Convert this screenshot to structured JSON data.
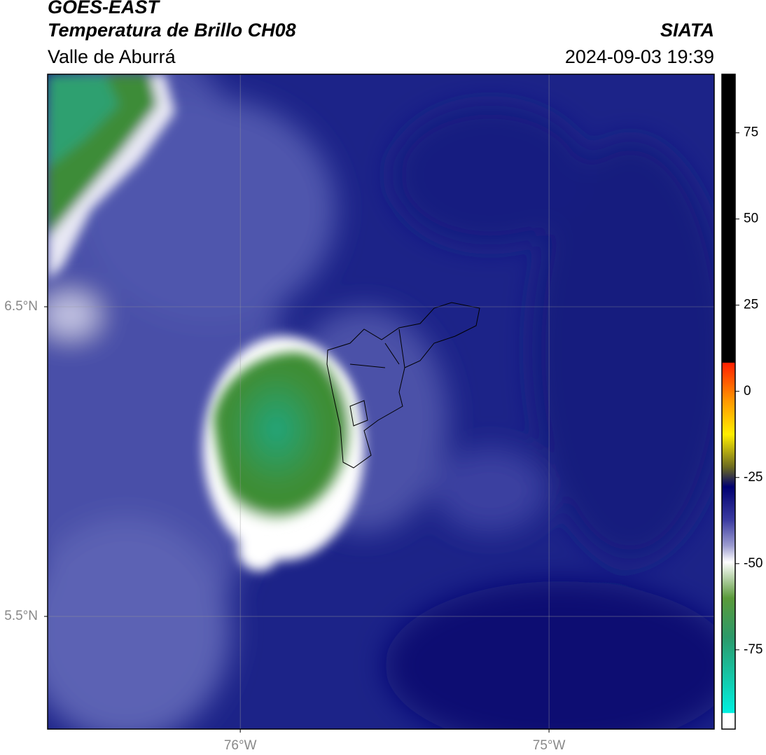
{
  "header": {
    "title": "GOES-EAST",
    "subtitle": "Temperatura de Brillo CH08",
    "region": "Valle de Aburrá",
    "source": "SIATA",
    "datetime": "2024-09-03 19:39"
  },
  "map": {
    "lat_lim": [
      5.136,
      7.251
    ],
    "lon_lim": [
      -76.624,
      -74.465
    ],
    "lat_ticks": [
      {
        "value": 6.5,
        "label": "6.5°N"
      },
      {
        "value": 5.5,
        "label": "5.5°N"
      }
    ],
    "lon_ticks": [
      {
        "value": -76,
        "label": "76°W"
      },
      {
        "value": -75,
        "label": "75°W"
      }
    ]
  },
  "colorbar": {
    "lim": [
      -98,
      92
    ],
    "ticks": [
      75,
      50,
      25,
      0,
      -25,
      -50,
      -75
    ]
  }
}
